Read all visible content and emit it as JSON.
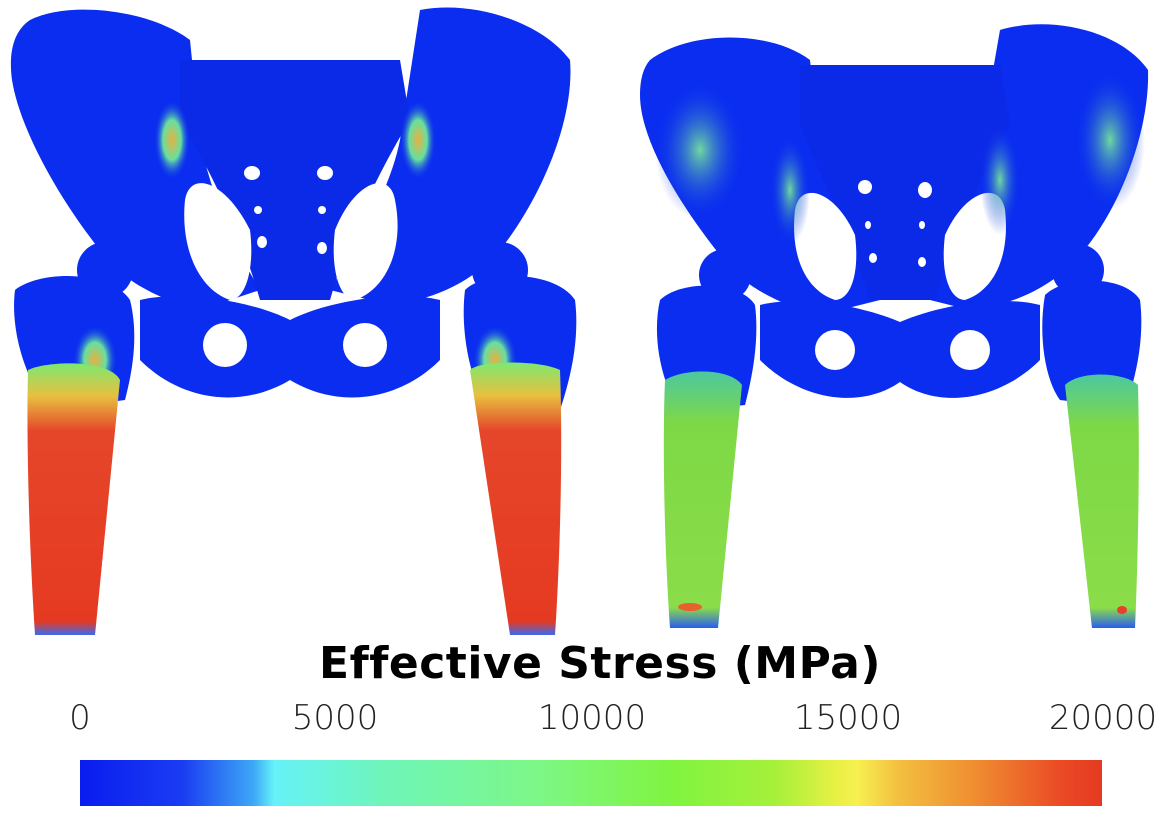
{
  "colorbar": {
    "title": "Effective Stress (MPa)",
    "ticks": [
      "0",
      "5000",
      "10000",
      "15000",
      "20000"
    ],
    "range": [
      0,
      20000
    ],
    "colormap": [
      "#0a1cf0",
      "#66f2f8",
      "#80f440",
      "#f6f050",
      "#e53a22"
    ]
  },
  "panels": [
    {
      "name": "left-model",
      "femur_shaft_color": "#e53a22",
      "pelvis_color": "#0a2df0"
    },
    {
      "name": "right-model",
      "femur_shaft_color": "#7ed846",
      "pelvis_color": "#0a2df0"
    }
  ]
}
